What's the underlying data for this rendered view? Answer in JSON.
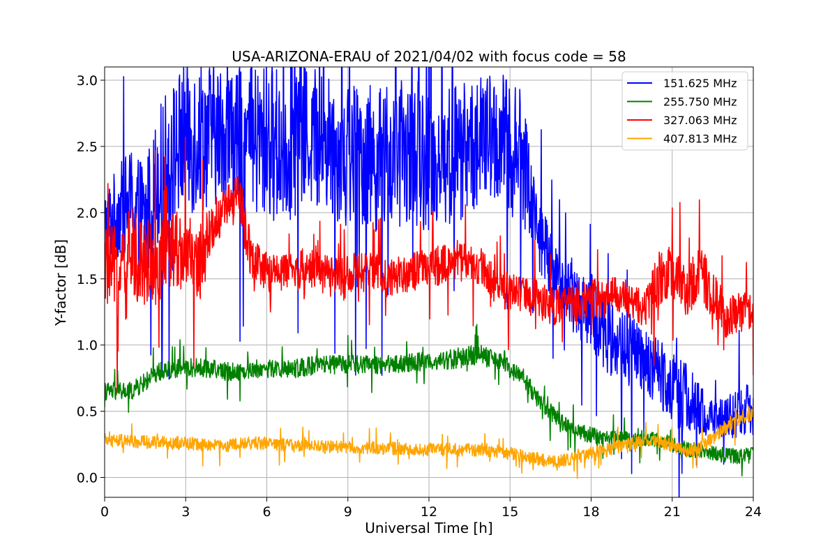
{
  "chart_data": {
    "type": "line",
    "title": "USA-ARIZONA-ERAU of 2021/04/02 with focus code = 58",
    "xlabel": "Universal Time [h]",
    "ylabel": "Y-factor [dB]",
    "xlim": [
      0,
      24
    ],
    "ylim": [
      -0.15,
      3.1
    ],
    "xticks": [
      0,
      3,
      6,
      9,
      12,
      15,
      18,
      21,
      24
    ],
    "yticks": [
      0.0,
      0.5,
      1.0,
      1.5,
      2.0,
      2.5,
      3.0
    ],
    "xtick_labels": [
      "0",
      "3",
      "6",
      "9",
      "12",
      "15",
      "18",
      "21",
      "24"
    ],
    "ytick_labels": [
      "0.0",
      "0.5",
      "1.0",
      "1.5",
      "2.0",
      "2.5",
      "3.0"
    ],
    "grid": true,
    "legend_position": "top-right",
    "series": [
      {
        "name": "151.625 MHz",
        "color": "#0000ff",
        "x": [
          0,
          0.5,
          1,
          1.5,
          2,
          2.5,
          3,
          3.5,
          4,
          4.5,
          5,
          5.5,
          6,
          6.5,
          7,
          7.5,
          8,
          8.5,
          9,
          9.5,
          10,
          10.5,
          11,
          11.5,
          12,
          12.5,
          13,
          13.5,
          14,
          14.5,
          15,
          15.5,
          16,
          16.5,
          17,
          17.5,
          18,
          18.5,
          19,
          19.5,
          20,
          20.5,
          21,
          21.5,
          22,
          22.5,
          23,
          23.5,
          24
        ],
        "y": [
          1.9,
          2.0,
          2.1,
          1.9,
          2.3,
          2.45,
          2.55,
          2.6,
          2.6,
          2.6,
          2.55,
          2.5,
          2.55,
          2.5,
          2.55,
          2.6,
          2.55,
          2.5,
          2.45,
          2.45,
          2.4,
          2.4,
          2.45,
          2.45,
          2.4,
          2.4,
          2.45,
          2.5,
          2.55,
          2.55,
          2.5,
          2.4,
          1.9,
          1.6,
          1.45,
          1.35,
          1.25,
          1.1,
          1.0,
          0.95,
          0.85,
          0.8,
          0.7,
          0.6,
          0.5,
          0.45,
          0.45,
          0.5,
          0.5
        ],
        "spread": [
          0.3,
          0.35,
          0.4,
          0.5,
          0.5,
          0.55,
          0.6,
          0.6,
          0.55,
          0.5,
          0.55,
          0.6,
          0.6,
          0.6,
          0.6,
          0.55,
          0.55,
          0.55,
          0.6,
          0.55,
          0.55,
          0.55,
          0.55,
          0.55,
          0.55,
          0.55,
          0.55,
          0.5,
          0.5,
          0.5,
          0.55,
          0.5,
          0.3,
          0.25,
          0.25,
          0.3,
          0.3,
          0.3,
          0.3,
          0.3,
          0.25,
          0.25,
          0.3,
          0.3,
          0.2,
          0.15,
          0.15,
          0.2,
          0.2
        ]
      },
      {
        "name": "255.750 MHz",
        "color": "#008000",
        "x": [
          0,
          0.5,
          1,
          1.5,
          2,
          2.5,
          3,
          3.5,
          4,
          4.5,
          5,
          5.5,
          6,
          6.5,
          7,
          7.5,
          8,
          8.5,
          9,
          9.5,
          10,
          10.5,
          11,
          11.5,
          12,
          12.5,
          13,
          13.5,
          14,
          14.5,
          15,
          15.5,
          16,
          16.5,
          17,
          17.5,
          18,
          18.5,
          19,
          19.5,
          20,
          20.5,
          21,
          21.5,
          22,
          22.5,
          23,
          23.5,
          24
        ],
        "y": [
          0.65,
          0.65,
          0.65,
          0.72,
          0.8,
          0.82,
          0.83,
          0.83,
          0.82,
          0.8,
          0.8,
          0.82,
          0.82,
          0.82,
          0.82,
          0.84,
          0.85,
          0.85,
          0.86,
          0.85,
          0.85,
          0.86,
          0.86,
          0.87,
          0.88,
          0.88,
          0.9,
          0.92,
          0.92,
          0.88,
          0.82,
          0.75,
          0.6,
          0.5,
          0.4,
          0.35,
          0.32,
          0.3,
          0.3,
          0.28,
          0.3,
          0.28,
          0.25,
          0.22,
          0.2,
          0.18,
          0.17,
          0.16,
          0.17
        ],
        "spread": [
          0.07,
          0.07,
          0.07,
          0.07,
          0.07,
          0.07,
          0.07,
          0.07,
          0.07,
          0.07,
          0.07,
          0.07,
          0.07,
          0.07,
          0.07,
          0.07,
          0.07,
          0.07,
          0.07,
          0.07,
          0.07,
          0.07,
          0.07,
          0.07,
          0.07,
          0.07,
          0.08,
          0.08,
          0.08,
          0.07,
          0.07,
          0.07,
          0.07,
          0.07,
          0.06,
          0.06,
          0.06,
          0.06,
          0.06,
          0.06,
          0.06,
          0.06,
          0.06,
          0.06,
          0.06,
          0.06,
          0.06,
          0.06,
          0.06
        ]
      },
      {
        "name": "327.063 MHz",
        "color": "#ff0000",
        "x": [
          0,
          0.5,
          1,
          1.5,
          2,
          2.5,
          3,
          3.5,
          4,
          4.5,
          5,
          5.5,
          6,
          6.5,
          7,
          7.5,
          8,
          8.5,
          9,
          9.5,
          10,
          10.5,
          11,
          11.5,
          12,
          12.5,
          13,
          13.5,
          14,
          14.5,
          15,
          15.5,
          16,
          16.5,
          17,
          17.5,
          18,
          18.5,
          19,
          19.5,
          20,
          20.5,
          21,
          21.5,
          22,
          22.5,
          23,
          23.5,
          24
        ],
        "y": [
          1.6,
          1.55,
          1.7,
          1.65,
          1.6,
          1.75,
          1.7,
          1.6,
          1.9,
          2.05,
          2.1,
          1.6,
          1.55,
          1.55,
          1.55,
          1.6,
          1.55,
          1.5,
          1.55,
          1.55,
          1.55,
          1.5,
          1.55,
          1.55,
          1.6,
          1.6,
          1.65,
          1.6,
          1.6,
          1.45,
          1.4,
          1.4,
          1.35,
          1.3,
          1.3,
          1.3,
          1.35,
          1.35,
          1.4,
          1.3,
          1.3,
          1.5,
          1.55,
          1.4,
          1.55,
          1.4,
          1.2,
          1.25,
          1.25
        ],
        "spread": [
          0.3,
          0.35,
          0.35,
          0.35,
          0.3,
          0.3,
          0.3,
          0.3,
          0.2,
          0.15,
          0.2,
          0.2,
          0.15,
          0.15,
          0.15,
          0.15,
          0.15,
          0.15,
          0.15,
          0.15,
          0.15,
          0.15,
          0.15,
          0.15,
          0.15,
          0.15,
          0.15,
          0.15,
          0.15,
          0.15,
          0.15,
          0.15,
          0.15,
          0.15,
          0.15,
          0.15,
          0.15,
          0.15,
          0.15,
          0.15,
          0.15,
          0.2,
          0.2,
          0.2,
          0.2,
          0.2,
          0.15,
          0.15,
          0.15
        ]
      },
      {
        "name": "407.813 MHz",
        "color": "#ffa500",
        "x": [
          0,
          0.5,
          1,
          1.5,
          2,
          2.5,
          3,
          3.5,
          4,
          4.5,
          5,
          5.5,
          6,
          6.5,
          7,
          7.5,
          8,
          8.5,
          9,
          9.5,
          10,
          10.5,
          11,
          11.5,
          12,
          12.5,
          13,
          13.5,
          14,
          14.5,
          15,
          15.5,
          16,
          16.5,
          17,
          17.5,
          18,
          18.5,
          19,
          19.5,
          20,
          20.5,
          21,
          21.5,
          22,
          22.5,
          23,
          23.5,
          24
        ],
        "y": [
          0.28,
          0.28,
          0.27,
          0.27,
          0.26,
          0.26,
          0.26,
          0.25,
          0.24,
          0.24,
          0.25,
          0.26,
          0.26,
          0.25,
          0.24,
          0.24,
          0.23,
          0.23,
          0.23,
          0.22,
          0.22,
          0.22,
          0.22,
          0.21,
          0.21,
          0.21,
          0.21,
          0.21,
          0.21,
          0.2,
          0.18,
          0.16,
          0.14,
          0.12,
          0.13,
          0.15,
          0.18,
          0.2,
          0.23,
          0.26,
          0.28,
          0.27,
          0.24,
          0.2,
          0.22,
          0.3,
          0.38,
          0.45,
          0.5
        ],
        "spread": [
          0.05,
          0.05,
          0.05,
          0.05,
          0.05,
          0.05,
          0.05,
          0.05,
          0.05,
          0.05,
          0.05,
          0.05,
          0.05,
          0.05,
          0.05,
          0.05,
          0.05,
          0.05,
          0.05,
          0.05,
          0.05,
          0.05,
          0.05,
          0.05,
          0.05,
          0.05,
          0.05,
          0.05,
          0.05,
          0.05,
          0.05,
          0.05,
          0.05,
          0.05,
          0.05,
          0.05,
          0.05,
          0.05,
          0.05,
          0.05,
          0.05,
          0.05,
          0.05,
          0.05,
          0.05,
          0.05,
          0.06,
          0.06,
          0.06
        ]
      }
    ]
  }
}
